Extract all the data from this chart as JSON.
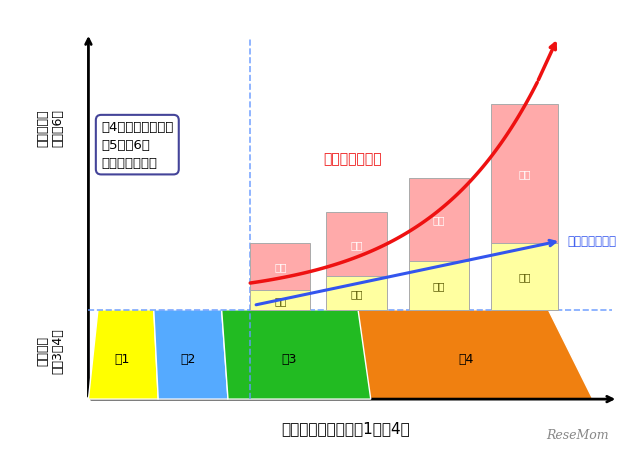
{
  "xlabel": "学ぶ力・理解力（小1～小4）",
  "ylabel_top": "応用学習力\n（小・6）",
  "ylabel_bottom": "基礎知識\n（小3・4）",
  "annotation_box": "小4までの学習が、\n小5・小6の\n伸び幅を決める",
  "label_ko6_oyo": "小６：応用演習",
  "label_ko5_chi": "小５：知識強化",
  "label_ko1": "小1",
  "label_ko2": "小2",
  "label_ko3": "小3",
  "label_ko4": "小4",
  "label_ko5": "小５",
  "label_ko6": "小６",
  "bg_color": "#ffffff",
  "orange_color": "#F08010",
  "yellow_color": "#FFFF00",
  "blue_color": "#55AAFF",
  "green_color": "#22BB22",
  "bar_yellow_color": "#FFFFA0",
  "bar_pink_color": "#FFAAAA",
  "dashed_color": "#6699FF",
  "arrow_red": "#EE1111",
  "arrow_blue": "#3355EE",
  "text_box_border": "#444499"
}
